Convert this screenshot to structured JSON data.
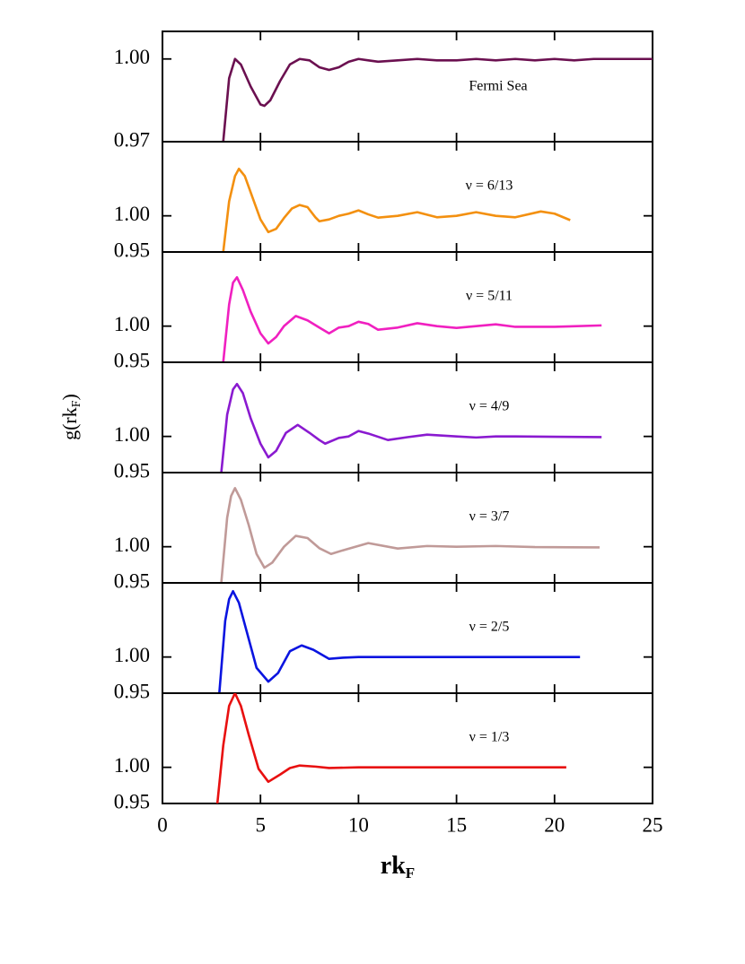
{
  "chart_data": [
    {
      "type": "line",
      "xlim": [
        0,
        25
      ],
      "xticks": [
        0,
        5,
        10,
        15,
        20,
        25
      ],
      "ylim": [
        0.97,
        1.01
      ],
      "yticks": [
        0.97,
        {
          "value": 1,
          "label": "1.00"
        }
      ],
      "series": [
        {
          "name": "Fermi Sea",
          "color": "#6b1050",
          "x": [
            3.1,
            3.4,
            3.7,
            4.0,
            4.5,
            5.0,
            5.2,
            5.5,
            6.0,
            6.5,
            7.0,
            7.5,
            8.0,
            8.5,
            9.0,
            9.5,
            10,
            10.5,
            11,
            12,
            13,
            14,
            15,
            16,
            17,
            18,
            19,
            20,
            21,
            22,
            23,
            24,
            25
          ],
          "values": [
            0.97,
            0.993,
            1.0,
            0.998,
            0.99,
            0.9835,
            0.983,
            0.985,
            0.992,
            0.998,
            1.0,
            0.9995,
            0.997,
            0.996,
            0.997,
            0.999,
            1.0,
            0.9995,
            0.999,
            0.9995,
            1.0,
            0.9995,
            0.9995,
            1.0,
            0.9995,
            1.0,
            0.9995,
            1.0,
            0.9995,
            1.0,
            1.0,
            1.0,
            1.0
          ]
        }
      ]
    },
    {
      "type": "line",
      "xlim": [
        0,
        25
      ],
      "xticks": [
        0,
        5,
        10,
        15,
        20,
        25
      ],
      "ylim": [
        0.95,
        1.1025
      ],
      "yticks": [
        0.95,
        {
          "value": 1,
          "label": "1.00"
        }
      ],
      "series": [
        {
          "name": "ν = 6/13",
          "color": "#f39010",
          "x": [
            3.1,
            3.4,
            3.7,
            3.9,
            4.2,
            4.6,
            5.0,
            5.4,
            5.8,
            6.2,
            6.6,
            7.0,
            7.4,
            7.8,
            8.0,
            8.5,
            9.0,
            9.5,
            10,
            10.5,
            11,
            12,
            13,
            14,
            15,
            16,
            17,
            18,
            19.3,
            20.0,
            20.8
          ],
          "values": [
            0.95,
            1.02,
            1.055,
            1.065,
            1.055,
            1.025,
            0.995,
            0.9775,
            0.982,
            0.997,
            1.01,
            1.015,
            1.012,
            0.998,
            0.9925,
            0.995,
            1.0,
            1.003,
            1.0075,
            1.002,
            0.9975,
            1.0,
            1.005,
            0.998,
            1.0,
            1.005,
            1.0,
            0.998,
            1.006,
            1.003,
            0.994
          ]
        }
      ]
    },
    {
      "type": "line",
      "xlim": [
        0,
        25
      ],
      "xticks": [
        0,
        5,
        10,
        15,
        20,
        25
      ],
      "ylim": [
        0.95,
        1.1025
      ],
      "yticks": [
        0.95,
        {
          "value": 1,
          "label": "1.00"
        }
      ],
      "series": [
        {
          "name": "ν = 5/11",
          "color": "#f020c0",
          "x": [
            3.1,
            3.4,
            3.6,
            3.8,
            4.1,
            4.5,
            5.0,
            5.4,
            5.8,
            6.2,
            6.8,
            7.4,
            8.0,
            8.5,
            9.0,
            9.5,
            10,
            10.5,
            11,
            12,
            13,
            14,
            15,
            16,
            17,
            18,
            20,
            22.4
          ],
          "values": [
            0.95,
            1.03,
            1.06,
            1.0675,
            1.05,
            1.02,
            0.99,
            0.976,
            0.985,
            1.0,
            1.014,
            1.008,
            0.998,
            0.99,
            0.998,
            1.0,
            1.006,
            1.003,
            0.995,
            0.998,
            1.004,
            1.0,
            0.9975,
            1.0,
            1.0025,
            0.999,
            0.999,
            1.001
          ]
        }
      ]
    },
    {
      "type": "line",
      "xlim": [
        0,
        25
      ],
      "xticks": [
        0,
        5,
        10,
        15,
        20,
        25
      ],
      "ylim": [
        0.95,
        1.1025
      ],
      "yticks": [
        0.95,
        {
          "value": 1,
          "label": "1.00"
        }
      ],
      "series": [
        {
          "name": "ν = 4/9",
          "color": "#8a1ad0",
          "x": [
            3.0,
            3.3,
            3.6,
            3.8,
            4.1,
            4.5,
            5.0,
            5.4,
            5.8,
            6.3,
            6.9,
            7.5,
            8.0,
            8.3,
            9.0,
            9.5,
            10,
            10.5,
            11.5,
            12.5,
            13.5,
            15,
            16,
            17,
            18,
            20,
            22.4
          ],
          "values": [
            0.95,
            1.03,
            1.065,
            1.0725,
            1.06,
            1.025,
            0.99,
            0.971,
            0.98,
            1.005,
            1.016,
            1.005,
            0.995,
            0.99,
            0.998,
            1.0,
            1.0075,
            1.004,
            0.995,
            0.999,
            1.0025,
            1.0,
            0.9985,
            1.0,
            1.0,
            0.9995,
            0.999
          ]
        }
      ]
    },
    {
      "type": "line",
      "xlim": [
        0,
        25
      ],
      "xticks": [
        0,
        5,
        10,
        15,
        20,
        25
      ],
      "ylim": [
        0.95,
        1.1025
      ],
      "yticks": [
        0.95,
        {
          "value": 1,
          "label": "1.00"
        }
      ],
      "series": [
        {
          "name": "ν = 3/7",
          "color": "#c09a98",
          "x": [
            3.0,
            3.3,
            3.5,
            3.7,
            4.0,
            4.4,
            4.8,
            5.2,
            5.6,
            6.2,
            6.8,
            7.4,
            8.0,
            8.6,
            9.2,
            10.5,
            12,
            13.5,
            15,
            17,
            19,
            22.3
          ],
          "values": [
            0.95,
            1.04,
            1.07,
            1.081,
            1.065,
            1.03,
            0.99,
            0.971,
            0.978,
            1.0,
            1.015,
            1.012,
            0.998,
            0.99,
            0.995,
            1.005,
            0.9975,
            1.001,
            1.0,
            1.001,
            0.9995,
            0.999
          ]
        }
      ]
    },
    {
      "type": "line",
      "xlim": [
        0,
        25
      ],
      "xticks": [
        0,
        5,
        10,
        15,
        20,
        25
      ],
      "ylim": [
        0.95,
        1.1025
      ],
      "yticks": [
        0.95,
        {
          "value": 1,
          "label": "1.00"
        }
      ],
      "series": [
        {
          "name": "ν = 2/5",
          "color": "#0a14e0",
          "x": [
            2.9,
            3.2,
            3.4,
            3.6,
            3.9,
            4.3,
            4.8,
            5.4,
            5.9,
            6.5,
            7.1,
            7.7,
            8.5,
            9.2,
            10,
            12,
            14,
            16,
            18,
            21.3
          ],
          "values": [
            0.95,
            1.05,
            1.08,
            1.091,
            1.075,
            1.035,
            0.985,
            0.966,
            0.978,
            1.008,
            1.016,
            1.01,
            0.9975,
            0.999,
            1.0,
            1.0,
            1.0,
            1.0,
            1.0,
            1.0
          ]
        }
      ]
    },
    {
      "type": "line",
      "xlim": [
        0,
        25
      ],
      "xticks": [
        0,
        5,
        10,
        15,
        20,
        25
      ],
      "ylim": [
        0.95,
        1.1025
      ],
      "yticks": [
        0.95,
        {
          "value": 1,
          "label": "1.00"
        }
      ],
      "xlabel": [
        "rk",
        "F"
      ],
      "ylabel": [
        "g(rk",
        "F",
        ")"
      ],
      "series": [
        {
          "name": "ν = 1/3",
          "color": "#e81010",
          "x": [
            2.8,
            3.1,
            3.4,
            3.7,
            4.0,
            4.4,
            4.9,
            5.4,
            6.0,
            6.5,
            7.0,
            7.8,
            8.5,
            10,
            12,
            14,
            16,
            18,
            20.6
          ],
          "values": [
            0.95,
            1.03,
            1.085,
            1.1025,
            1.085,
            1.045,
            0.998,
            0.98,
            0.99,
            0.999,
            1.0025,
            1.001,
            0.999,
            1.0,
            1.0,
            1.0,
            1.0,
            1.0,
            1.0
          ]
        }
      ]
    }
  ]
}
